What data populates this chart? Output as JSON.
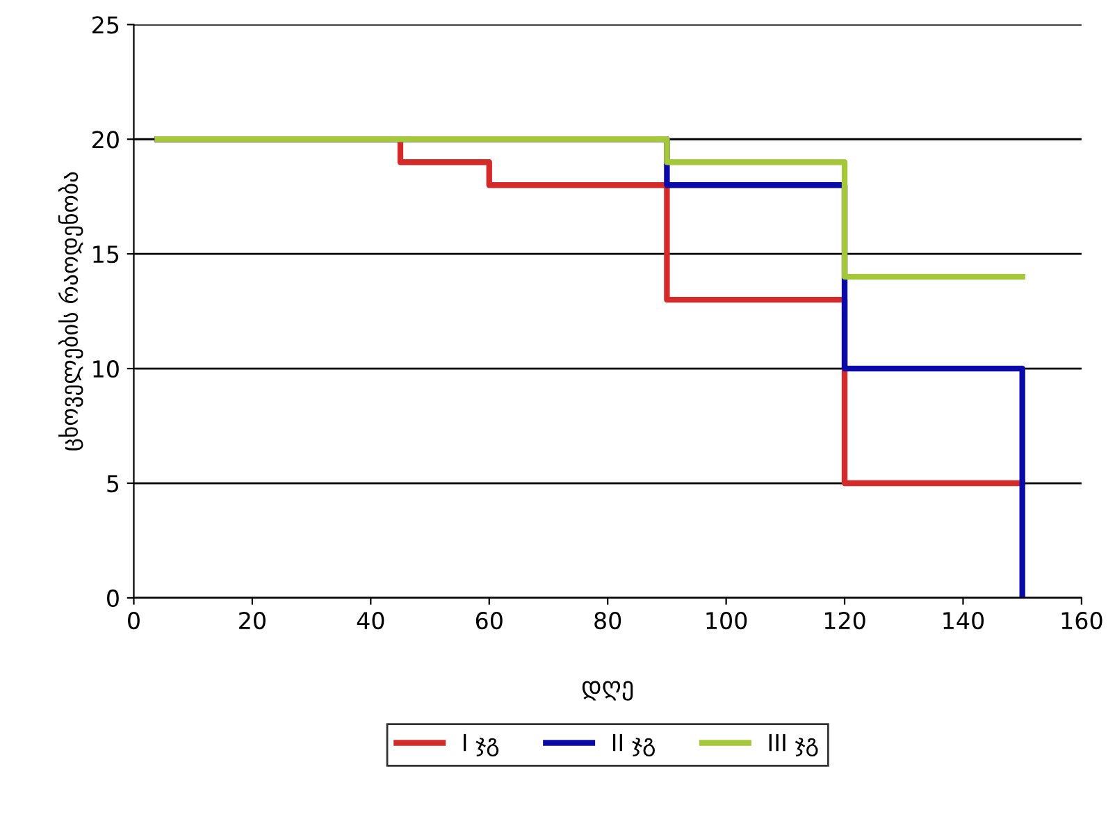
{
  "chart_data": {
    "type": "step",
    "xlabel": "დღე",
    "ylabel": "ცხოველების რაოდენობა",
    "xlim": [
      0,
      160
    ],
    "xticks": [
      0,
      20,
      40,
      60,
      80,
      100,
      120,
      140,
      160
    ],
    "ylim": [
      0,
      25
    ],
    "yticks": [
      0,
      5,
      10,
      15,
      20,
      25
    ],
    "grid": "y",
    "legend": "bottom",
    "line_style": "solid",
    "marker": "none",
    "series": [
      {
        "name": "I ჯგ",
        "color": "#d42a2a",
        "x": [
          4,
          45,
          60,
          90,
          120,
          150
        ],
        "values": [
          20,
          19,
          18,
          13,
          5,
          5
        ]
      },
      {
        "name": "II ჯგ",
        "color": "#0a0aa8",
        "x": [
          4,
          90,
          120,
          150
        ],
        "values": [
          20,
          18,
          10,
          0
        ]
      },
      {
        "name": "III ჯგ",
        "color": "#a5c83a",
        "x": [
          4,
          90,
          120,
          150
        ],
        "values": [
          20,
          19,
          14,
          14
        ]
      }
    ]
  }
}
